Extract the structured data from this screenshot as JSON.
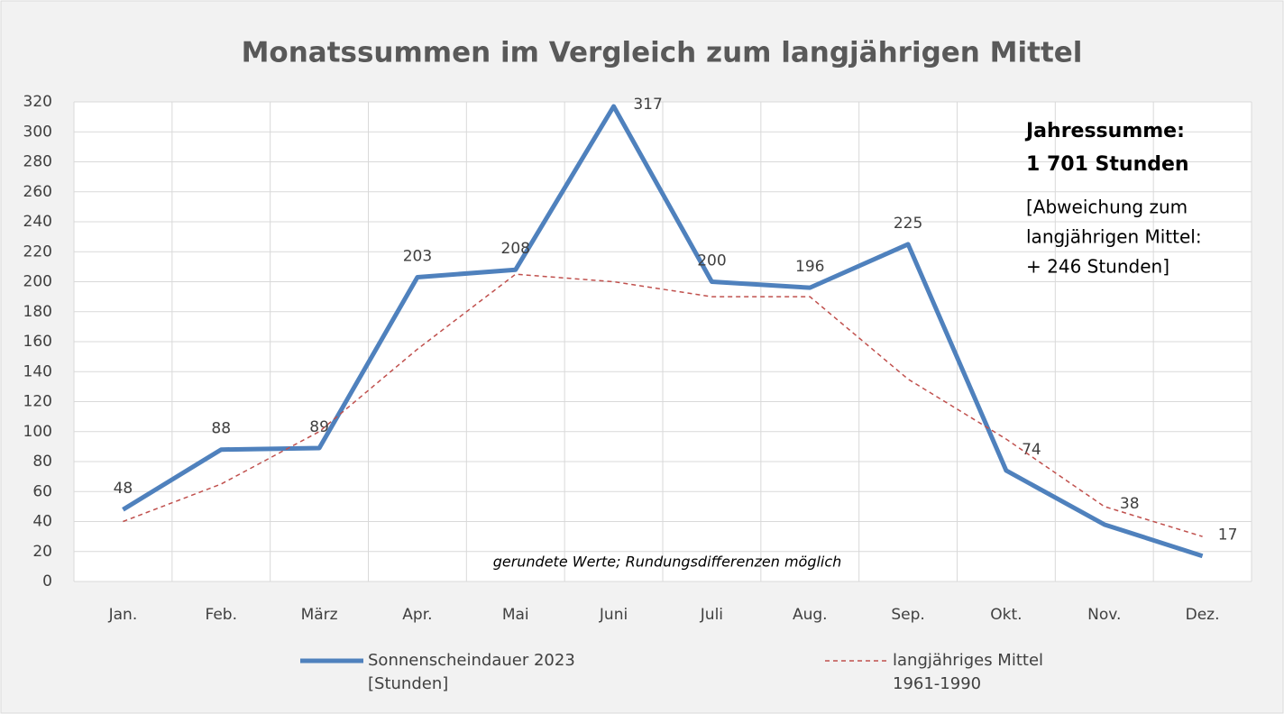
{
  "chart_data": {
    "type": "line",
    "title": "Monatssummen im Vergleich zum langjährigen Mittel",
    "categories": [
      "Jan.",
      "Feb.",
      "März",
      "Apr.",
      "Mai",
      "Juni",
      "Juli",
      "Aug.",
      "Sep.",
      "Okt.",
      "Nov.",
      "Dez."
    ],
    "series": [
      {
        "name": "Sonnenscheindauer 2023 [Stunden]",
        "color": "#4f81bd",
        "style": "solid",
        "values": [
          48,
          88,
          89,
          203,
          208,
          317,
          200,
          196,
          225,
          74,
          38,
          17
        ]
      },
      {
        "name": "langjähriges Mittel 1961-1990",
        "color": "#c0504d",
        "style": "dashed",
        "values": [
          40,
          65,
          100,
          155,
          205,
          200,
          190,
          190,
          135,
          95,
          50,
          30
        ]
      }
    ],
    "ylim": [
      0,
      320
    ],
    "yticks": [
      0,
      20,
      40,
      60,
      80,
      100,
      120,
      140,
      160,
      180,
      200,
      220,
      240,
      260,
      280,
      300,
      320
    ],
    "grid": true,
    "annotations": {
      "total": [
        "Jahressumme:",
        "1 701 Stunden"
      ],
      "deviation": [
        "[Abweichung zum",
        "langjährigen Mittel:",
        "+  246 Stunden]"
      ],
      "note": "gerundete Werte; Rundungsdifferenzen möglich"
    }
  }
}
